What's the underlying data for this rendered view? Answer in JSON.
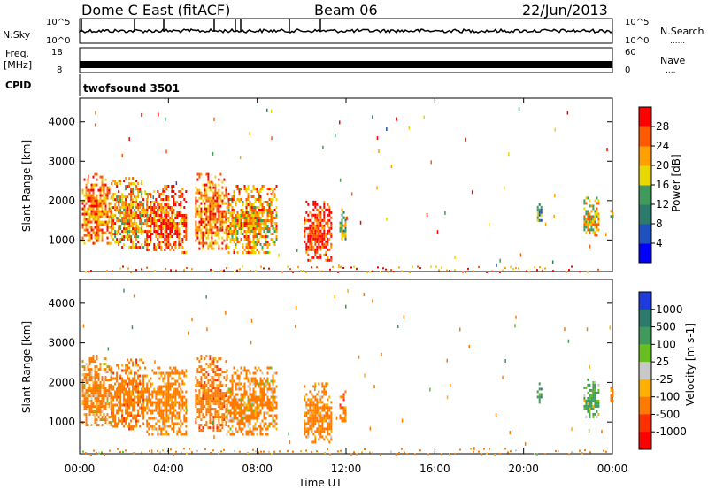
{
  "header": {
    "title": "Dome C East (fitACF)",
    "beam": "Beam 06",
    "date": "22/Jun/2013"
  },
  "side_labels": {
    "nsky": "N.Sky",
    "freq_l1": "Freq.",
    "freq_l2": "[MHz]",
    "cpid": "CPID",
    "nsearch": "N.Search",
    "nave": "Nave",
    "nsearch_dots": "......",
    "nave_dots": "...."
  },
  "cpid_value": "twofsound 3501",
  "chart_data": [
    {
      "type": "line",
      "panel": "noise",
      "left_ticks": [
        "10^5",
        "10^0"
      ],
      "right_ticks": [
        "10^5",
        "10^0"
      ]
    },
    {
      "type": "line",
      "panel": "frequency",
      "left_ticks": [
        "18",
        "8"
      ],
      "right_ticks": [
        "60",
        "0"
      ]
    },
    {
      "type": "scatter",
      "panel": "power",
      "ylabel": "Slant Range [km]",
      "yticks": [
        "1000",
        "2000",
        "3000",
        "4000"
      ],
      "ylim": [
        200,
        4600
      ],
      "xlim": [
        0,
        24
      ],
      "colorbar": {
        "label": "Power [dB]",
        "ticks": [
          "4",
          "8",
          "12",
          "16",
          "20",
          "24",
          "28"
        ],
        "colors": [
          "#0000ff",
          "#1e50c0",
          "#2c7a6c",
          "#3f9a5c",
          "#e8d800",
          "#ffa000",
          "#ff5a00",
          "#ff0000"
        ]
      },
      "echo_regions": [
        {
          "t0": 0.1,
          "t1": 1.4,
          "r0": 900,
          "r1": 2700,
          "power": 24
        },
        {
          "t0": 1.4,
          "t1": 3.0,
          "r0": 800,
          "r1": 2600,
          "power": 22
        },
        {
          "t0": 3.0,
          "t1": 4.8,
          "r0": 700,
          "r1": 2400,
          "power": 26
        },
        {
          "t0": 5.2,
          "t1": 6.6,
          "r0": 800,
          "r1": 2700,
          "power": 24
        },
        {
          "t0": 6.6,
          "t1": 8.9,
          "r0": 700,
          "r1": 2400,
          "power": 22
        },
        {
          "t0": 10.1,
          "t1": 11.3,
          "r0": 500,
          "r1": 2000,
          "power": 28
        },
        {
          "t0": 11.7,
          "t1": 12.0,
          "r0": 1000,
          "r1": 1800,
          "power": 16
        },
        {
          "t0": 20.6,
          "t1": 20.8,
          "r0": 1500,
          "r1": 2000,
          "power": 12
        },
        {
          "t0": 22.7,
          "t1": 23.4,
          "r0": 1100,
          "r1": 2100,
          "power": 20
        },
        {
          "t0": 23.9,
          "t1": 24.0,
          "r0": 1500,
          "r1": 1900,
          "power": 14
        }
      ]
    },
    {
      "type": "scatter",
      "panel": "velocity",
      "ylabel": "Slant Range [km]",
      "yticks": [
        "1000",
        "2000",
        "3000",
        "4000"
      ],
      "ylim": [
        200,
        4600
      ],
      "xlim": [
        0,
        24
      ],
      "xticks": [
        "00:00",
        "04:00",
        "08:00",
        "12:00",
        "16:00",
        "20:00",
        "00:00"
      ],
      "xlabel": "Time UT",
      "colorbar": {
        "label": "Velocity [m s-1]",
        "ticks": [
          "1000",
          "500",
          "100",
          "25",
          "-25",
          "-100",
          "-500",
          "-1000"
        ],
        "colors": [
          "#1e3cdc",
          "#2c7a6c",
          "#3f9a5c",
          "#68c020",
          "#c8c8c8",
          "#ffb000",
          "#ff7a00",
          "#ff3000",
          "#ff0000"
        ]
      },
      "echo_regions": [
        {
          "t0": 0.1,
          "t1": 1.4,
          "r0": 900,
          "r1": 2700,
          "velocity": -200
        },
        {
          "t0": 1.4,
          "t1": 3.0,
          "r0": 800,
          "r1": 2600,
          "velocity": -300
        },
        {
          "t0": 3.0,
          "t1": 4.8,
          "r0": 700,
          "r1": 2400,
          "velocity": -250
        },
        {
          "t0": 5.2,
          "t1": 6.6,
          "r0": 800,
          "r1": 2700,
          "velocity": -300
        },
        {
          "t0": 6.6,
          "t1": 8.9,
          "r0": 700,
          "r1": 2400,
          "velocity": -200
        },
        {
          "t0": 10.1,
          "t1": 11.3,
          "r0": 500,
          "r1": 2000,
          "velocity": -250
        },
        {
          "t0": 11.7,
          "t1": 12.0,
          "r0": 1000,
          "r1": 1800,
          "velocity": -300
        },
        {
          "t0": 20.6,
          "t1": 20.8,
          "r0": 1500,
          "r1": 2000,
          "velocity": 300
        },
        {
          "t0": 22.7,
          "t1": 23.4,
          "r0": 1100,
          "r1": 2100,
          "velocity": 200
        },
        {
          "t0": 23.9,
          "t1": 24.0,
          "r0": 1500,
          "r1": 1900,
          "velocity": -150
        }
      ]
    }
  ]
}
